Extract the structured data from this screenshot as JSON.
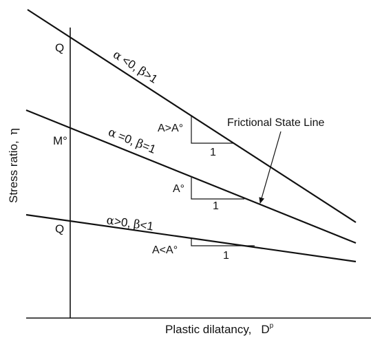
{
  "axes": {
    "x_label": "Plastic dilatancy,",
    "x_symbol": "D",
    "x_superscript": "p",
    "y_label": "Stress ratio,",
    "y_symbol": "η"
  },
  "intercepts": {
    "top": "Q",
    "middle": "M°",
    "bottom": "Q"
  },
  "lines": [
    {
      "alpha": "α",
      "alpha_cond": "<0,",
      "beta": "β",
      "beta_cond": ">1"
    },
    {
      "alpha": "α",
      "alpha_cond": "=0,",
      "beta": "β",
      "beta_cond": "=1"
    },
    {
      "alpha": "α",
      "alpha_cond": ">0,",
      "beta": "β",
      "beta_cond": "<1"
    }
  ],
  "slopes": [
    {
      "label": "A>A°",
      "run": "1"
    },
    {
      "label": "A°",
      "run": "1"
    },
    {
      "label": "A<A°",
      "run": "1"
    }
  ],
  "annotation": "Frictional State Line"
}
